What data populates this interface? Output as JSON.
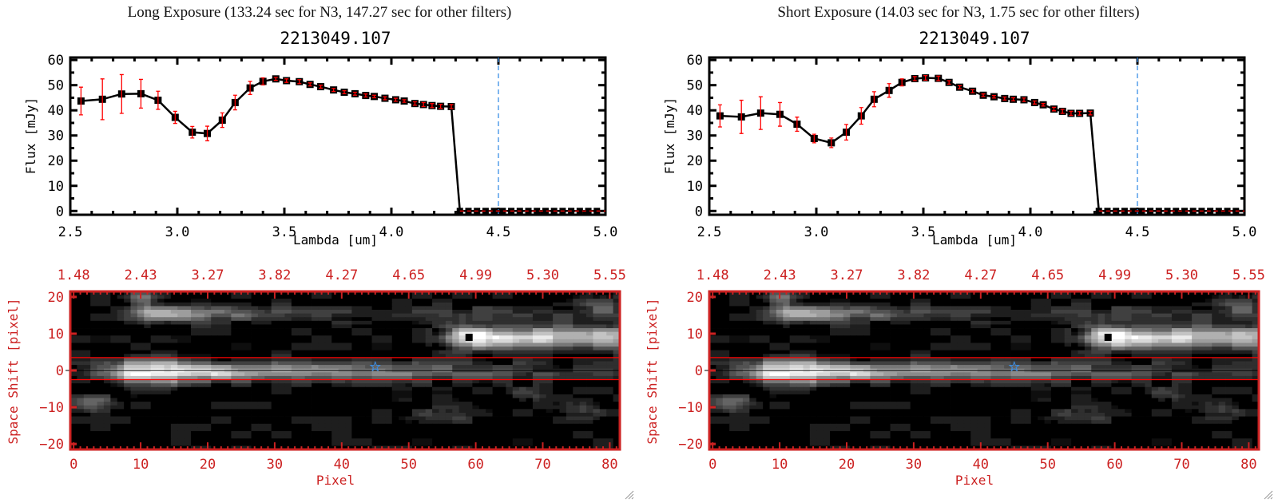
{
  "colors": {
    "axis_red": "#cc2222",
    "errorbar": "#ff0000",
    "marker": "#000000",
    "cut_line": "#3a8ee6",
    "star": "#3a8ee6",
    "aperture_line": "#ff0000"
  },
  "panels": [
    {
      "title": "Long Exposure (133.24 sec for N3, 147.27 sec for other filters)",
      "object_id": "2213049.107",
      "resize_grip_icon": "resize-grip-icon"
    },
    {
      "title": "Short Exposure (14.03 sec for N3, 1.75 sec for other filters)",
      "object_id": "2213049.107",
      "resize_grip_icon": "resize-grip-icon"
    }
  ],
  "chart_data": [
    {
      "type": "line",
      "panel": "Long Exposure",
      "xlabel": "Lambda [um]",
      "ylabel": "Flux [mJy]",
      "xlim": [
        2.5,
        5.0
      ],
      "ylim": [
        -1.5,
        61
      ],
      "xticks": [
        "2.5",
        "3.0",
        "3.5",
        "4.0",
        "4.5",
        "5.0"
      ],
      "yticks": [
        "0",
        "10",
        "20",
        "30",
        "40",
        "50",
        "60"
      ],
      "vertical_dashed_line_at": 4.5,
      "x": [
        2.55,
        2.65,
        2.74,
        2.83,
        2.91,
        2.99,
        3.07,
        3.14,
        3.21,
        3.27,
        3.34,
        3.4,
        3.46,
        3.51,
        3.57,
        3.62,
        3.67,
        3.73,
        3.78,
        3.83,
        3.88,
        3.92,
        3.97,
        4.02,
        4.06,
        4.11,
        4.15,
        4.19,
        4.23,
        4.28
      ],
      "y": [
        43.7,
        44.4,
        46.5,
        46.6,
        44.0,
        37.2,
        31.3,
        30.8,
        36.1,
        43.1,
        48.9,
        51.5,
        52.5,
        51.8,
        51.4,
        50.3,
        49.4,
        48.1,
        47.2,
        46.6,
        45.9,
        45.5,
        44.8,
        44.2,
        43.7,
        42.7,
        42.3,
        41.9,
        41.6,
        41.5
      ],
      "yerr": [
        5.5,
        8.1,
        7.7,
        5.7,
        3.6,
        2.4,
        2.3,
        2.9,
        2.9,
        2.9,
        2.6,
        1.4,
        0.6,
        0.7,
        0.8,
        0.6,
        0.6,
        0.6,
        0.6,
        0.6,
        0.6,
        0.5,
        0.6,
        0.6,
        0.5,
        0.7,
        0.8,
        0.8,
        0.8,
        0.8
      ],
      "zero_x": [
        4.32,
        4.36,
        4.4,
        4.44,
        4.48,
        4.52,
        4.56,
        4.6,
        4.64,
        4.68,
        4.72,
        4.76,
        4.8,
        4.84,
        4.88,
        4.92,
        4.96
      ]
    },
    {
      "type": "line",
      "panel": "Short Exposure",
      "xlabel": "Lambda [um]",
      "ylabel": "Flux [mJy]",
      "xlim": [
        2.5,
        5.0
      ],
      "ylim": [
        -1.5,
        61
      ],
      "xticks": [
        "2.5",
        "3.0",
        "3.5",
        "4.0",
        "4.5",
        "5.0"
      ],
      "yticks": [
        "0",
        "10",
        "20",
        "30",
        "40",
        "50",
        "60"
      ],
      "vertical_dashed_line_at": 4.5,
      "x": [
        2.55,
        2.65,
        2.74,
        2.83,
        2.91,
        2.99,
        3.07,
        3.14,
        3.21,
        3.27,
        3.34,
        3.4,
        3.46,
        3.51,
        3.57,
        3.62,
        3.67,
        3.73,
        3.78,
        3.83,
        3.88,
        3.92,
        3.97,
        4.02,
        4.06,
        4.11,
        4.15,
        4.19,
        4.23,
        4.28
      ],
      "y": [
        37.8,
        37.4,
        38.9,
        38.4,
        34.5,
        28.8,
        27.1,
        31.3,
        37.8,
        44.4,
        47.9,
        51.1,
        52.6,
        52.9,
        52.7,
        51.1,
        49.2,
        47.6,
        46.0,
        45.4,
        44.7,
        44.4,
        44.2,
        43.1,
        42.2,
        40.5,
        39.6,
        38.8,
        38.8,
        38.9
      ],
      "yerr": [
        4.4,
        6.6,
        6.5,
        4.7,
        2.8,
        1.7,
        1.9,
        3.1,
        3.3,
        3.0,
        2.7,
        1.4,
        0.8,
        0.9,
        0.9,
        0.7,
        0.6,
        0.6,
        0.5,
        0.5,
        0.6,
        0.6,
        0.7,
        0.6,
        0.5,
        0.7,
        0.8,
        0.8,
        0.7,
        0.7
      ],
      "zero_x": [
        4.32,
        4.36,
        4.4,
        4.44,
        4.48,
        4.52,
        4.56,
        4.6,
        4.64,
        4.68,
        4.72,
        4.76,
        4.8,
        4.84,
        4.88,
        4.92,
        4.96
      ]
    },
    {
      "type": "heatmap",
      "panel": "Long Exposure",
      "xlabel": "Pixel",
      "ylabel": "Space Shift [pixel]",
      "xlim": [
        0,
        81
      ],
      "ylim": [
        -21,
        21
      ],
      "xticks": [
        "0",
        "10",
        "20",
        "30",
        "40",
        "50",
        "60",
        "70",
        "80"
      ],
      "top_xticks": [
        "1.48",
        "2.43",
        "3.27",
        "3.82",
        "4.27",
        "4.65",
        "4.99",
        "5.30",
        "5.55"
      ],
      "yticks": [
        "20",
        "10",
        "0",
        "-10",
        "-20"
      ],
      "aperture_lines": [
        3,
        -3
      ],
      "center_line": 0,
      "target_star": [
        45.5,
        1
      ],
      "marked_source": [
        59.5,
        9
      ],
      "colormap": "grayscale"
    },
    {
      "type": "heatmap",
      "panel": "Short Exposure",
      "xlabel": "Pixel",
      "ylabel": "Space Shift [pixel]",
      "xlim": [
        0,
        81
      ],
      "ylim": [
        -21,
        21
      ],
      "xticks": [
        "0",
        "10",
        "20",
        "30",
        "40",
        "50",
        "60",
        "70",
        "80"
      ],
      "top_xticks": [
        "1.48",
        "2.43",
        "3.27",
        "3.82",
        "4.27",
        "4.65",
        "4.99",
        "5.30",
        "5.55"
      ],
      "yticks": [
        "20",
        "10",
        "0",
        "-10",
        "-20"
      ],
      "aperture_lines": [
        3,
        -3
      ],
      "center_line": 0,
      "target_star": [
        45.5,
        1
      ],
      "marked_source": [
        59.5,
        9
      ],
      "colormap": "grayscale"
    }
  ]
}
